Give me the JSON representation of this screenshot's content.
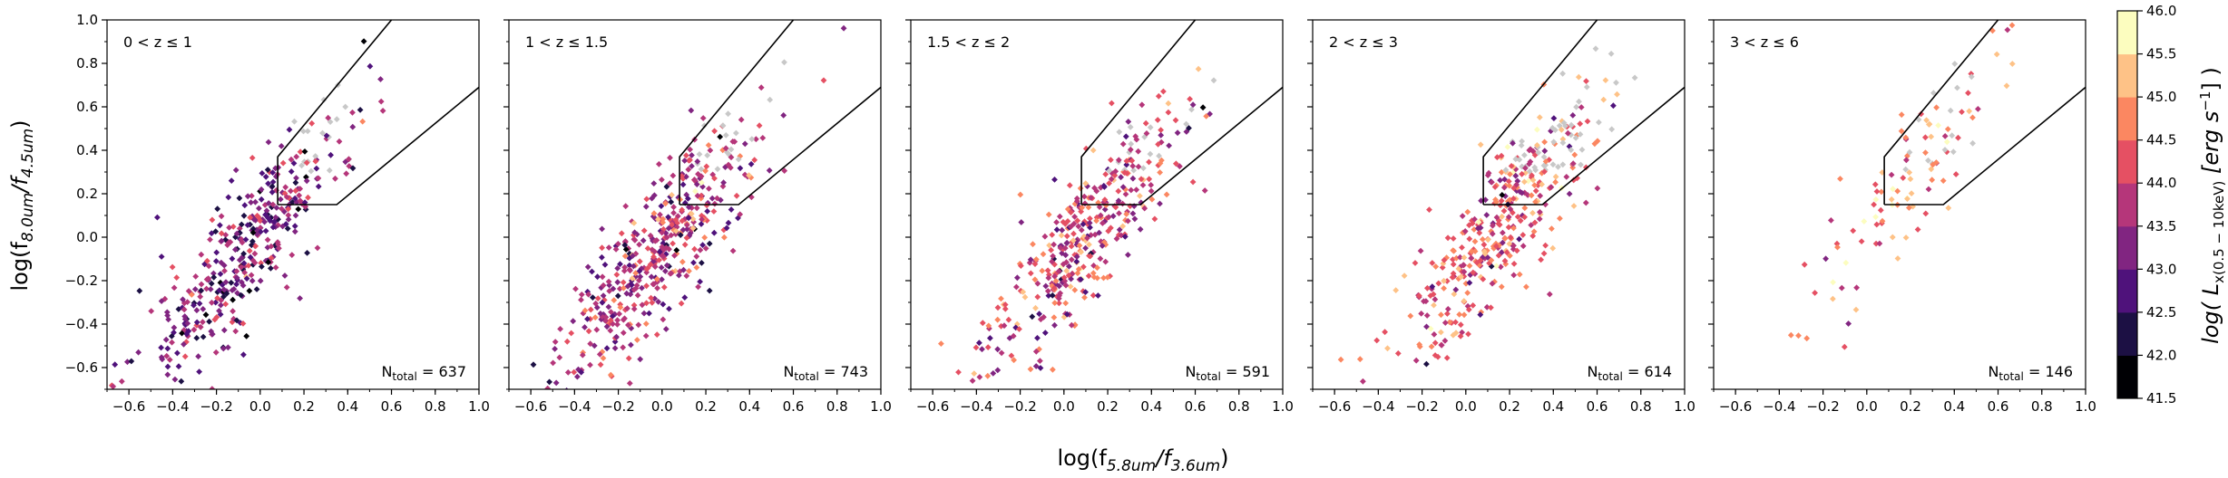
{
  "figure": {
    "xlabel_main": "log(f",
    "xlabel_sub1": "5.8um",
    "xlabel_mid": "/f",
    "xlabel_sub2": "3.6um",
    "xlabel_end": ")",
    "ylabel_main": "log(f",
    "ylabel_sub1": "8.0um",
    "ylabel_mid": "/f",
    "ylabel_sub2": "4.5um",
    "ylabel_end": ")",
    "colorbar_label_main": "log( L",
    "colorbar_label_sub": "x(0.5 − 10keV)",
    "colorbar_label_unit": " [erg s",
    "colorbar_label_sup": "−1",
    "colorbar_label_end": "] )"
  },
  "colorbar": {
    "ticks": [
      "41.5",
      "42.0",
      "42.5",
      "43.0",
      "43.5",
      "44.0",
      "44.5",
      "45.0",
      "45.5",
      "46.0"
    ],
    "range": [
      41.5,
      46.0
    ],
    "colors": [
      "#000004",
      "#1c1044",
      "#4f127b",
      "#812581",
      "#b5367a",
      "#e55063",
      "#fb8761",
      "#fec287",
      "#fcfdbf"
    ],
    "no_data_color": "#c8c8c8"
  },
  "chart_data": [
    {
      "type": "scatter",
      "panel_label": "0 < z ≤ 1",
      "n_label": "N",
      "n_sub": "total",
      "n_value": " = 637",
      "n_total": 637,
      "xlim": [
        -0.7,
        1.0
      ],
      "ylim": [
        -0.7,
        1.0
      ],
      "xticks": [
        "−0.6",
        "−0.4",
        "−0.2",
        "0.0",
        "0.2",
        "0.4",
        "0.6",
        "0.8",
        "1.0"
      ],
      "yticks": [
        "−0.6",
        "−0.4",
        "−0.2",
        "0.0",
        "0.2",
        "0.4",
        "0.6",
        "0.8",
        "1.0"
      ],
      "cloud_center": [
        -0.05,
        -0.05
      ],
      "lx_mean": 43.2,
      "n_plotted": 420
    },
    {
      "type": "scatter",
      "panel_label": "1 < z ≤ 1.5",
      "n_label": "N",
      "n_sub": "total",
      "n_value": " = 743",
      "n_total": 743,
      "xlim": [
        -0.7,
        1.0
      ],
      "ylim": [
        -0.7,
        1.0
      ],
      "xticks": [
        "−0.6",
        "−0.4",
        "−0.2",
        "0.0",
        "0.2",
        "0.4",
        "0.6",
        "0.8",
        "1.0"
      ],
      "yticks": [],
      "cloud_center": [
        0.0,
        -0.05
      ],
      "lx_mean": 43.7,
      "n_plotted": 480
    },
    {
      "type": "scatter",
      "panel_label": "1.5 < z ≤ 2",
      "n_label": "N",
      "n_sub": "total",
      "n_value": " = 591",
      "n_total": 591,
      "xlim": [
        -0.7,
        1.0
      ],
      "ylim": [
        -0.7,
        1.0
      ],
      "xticks": [
        "−0.6",
        "−0.4",
        "−0.2",
        "0.0",
        "0.2",
        "0.4",
        "0.6",
        "0.8",
        "1.0"
      ],
      "yticks": [],
      "cloud_center": [
        0.1,
        0.0
      ],
      "lx_mean": 44.0,
      "n_plotted": 400
    },
    {
      "type": "scatter",
      "panel_label": "2 < z ≤ 3",
      "n_label": "N",
      "n_sub": "total",
      "n_value": " = 614",
      "n_total": 614,
      "xlim": [
        -0.7,
        1.0
      ],
      "ylim": [
        -0.7,
        1.0
      ],
      "xticks": [
        "−0.6",
        "−0.4",
        "−0.2",
        "0.0",
        "0.2",
        "0.4",
        "0.6",
        "0.8",
        "1.0"
      ],
      "yticks": [],
      "cloud_center": [
        0.15,
        0.05
      ],
      "lx_mean": 44.3,
      "n_plotted": 410
    },
    {
      "type": "scatter",
      "panel_label": "3 < z ≤ 6",
      "n_label": "N",
      "n_sub": "total",
      "n_value": " = 146",
      "n_total": 146,
      "xlim": [
        -0.7,
        1.0
      ],
      "ylim": [
        -0.7,
        1.0
      ],
      "xticks": [
        "−0.6",
        "−0.4",
        "−0.2",
        "0.0",
        "0.2",
        "0.4",
        "0.6",
        "0.8",
        "1.0"
      ],
      "yticks": [],
      "cloud_center": [
        0.2,
        0.3
      ],
      "lx_mean": 44.6,
      "n_plotted": 110
    }
  ],
  "agn_wedge": {
    "x": [
      0.08,
      0.08,
      0.35,
      1.0,
      1.0,
      0.6
    ],
    "y": [
      0.15,
      0.37,
      0.15,
      0.69,
      1.0,
      1.0
    ]
  }
}
